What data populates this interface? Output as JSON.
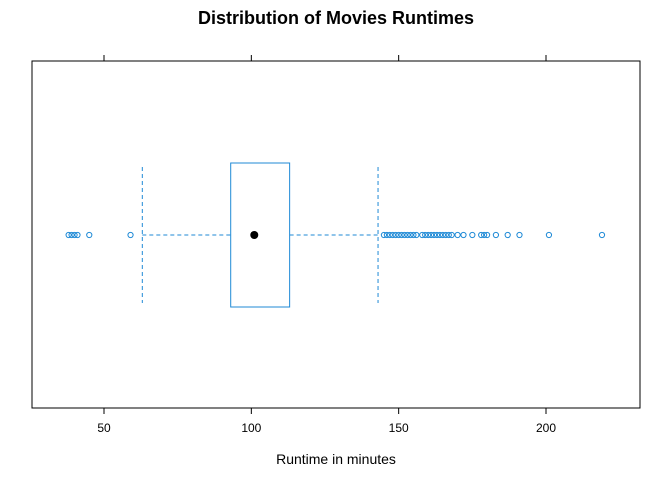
{
  "chart_data": {
    "type": "boxplot",
    "orientation": "horizontal",
    "title": "Distribution of Movies Runtimes",
    "xlabel": "Runtime in minutes",
    "ylabel": "",
    "xlim": [
      25,
      255
    ],
    "ticks": [
      50,
      100,
      150,
      200
    ],
    "tick_labels": [
      "50",
      "100",
      "150",
      "200"
    ],
    "grid": false,
    "legend": "none",
    "box": {
      "lower_whisker": 63,
      "q1": 93,
      "median": 101,
      "q3": 113,
      "upper_whisker": 143
    },
    "outliers": [
      38,
      39,
      40,
      41,
      45,
      59,
      145,
      146,
      147,
      148,
      149,
      150,
      151,
      152,
      153,
      154,
      155,
      156,
      158,
      159,
      160,
      161,
      162,
      163,
      164,
      165,
      166,
      167,
      168,
      170,
      172,
      175,
      178,
      179,
      180,
      183,
      187,
      191,
      201,
      219
    ],
    "colors": {
      "box": "#1f8ad6",
      "median_dot": "#000000",
      "frame": "#000000"
    }
  }
}
